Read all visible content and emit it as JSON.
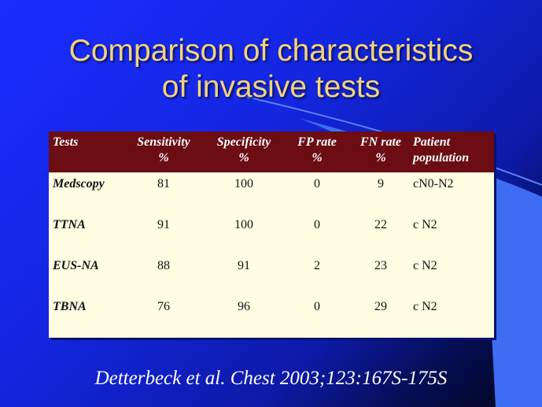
{
  "slide": {
    "title_lines": [
      "Comparison of characteristics",
      "of invasive tests"
    ],
    "colors": {
      "title": "#f2d37a",
      "header_bg": "#6b0d12",
      "table_bg": "#fffde2",
      "background": "#1a2cff",
      "accent_shape": "#3d6df2"
    },
    "table": {
      "headers": [
        [
          "Tests",
          ""
        ],
        [
          "Sensitivity",
          "%"
        ],
        [
          "Specificity",
          "%"
        ],
        [
          "FP rate",
          "%"
        ],
        [
          "FN rate",
          "%"
        ],
        [
          "Patient",
          "population"
        ]
      ],
      "rows": [
        [
          "Medscopy",
          "81",
          "100",
          "0",
          "9",
          "cN0-N2"
        ],
        [
          "TTNA",
          "91",
          "100",
          "0",
          "22",
          "c N2"
        ],
        [
          "EUS-NA",
          "88",
          "91",
          "2",
          "23",
          "c N2"
        ],
        [
          "TBNA",
          "76",
          "96",
          "0",
          "29",
          "c N2"
        ]
      ]
    },
    "citation": "Detterbeck et al. Chest 2003;123:167S-175S"
  }
}
